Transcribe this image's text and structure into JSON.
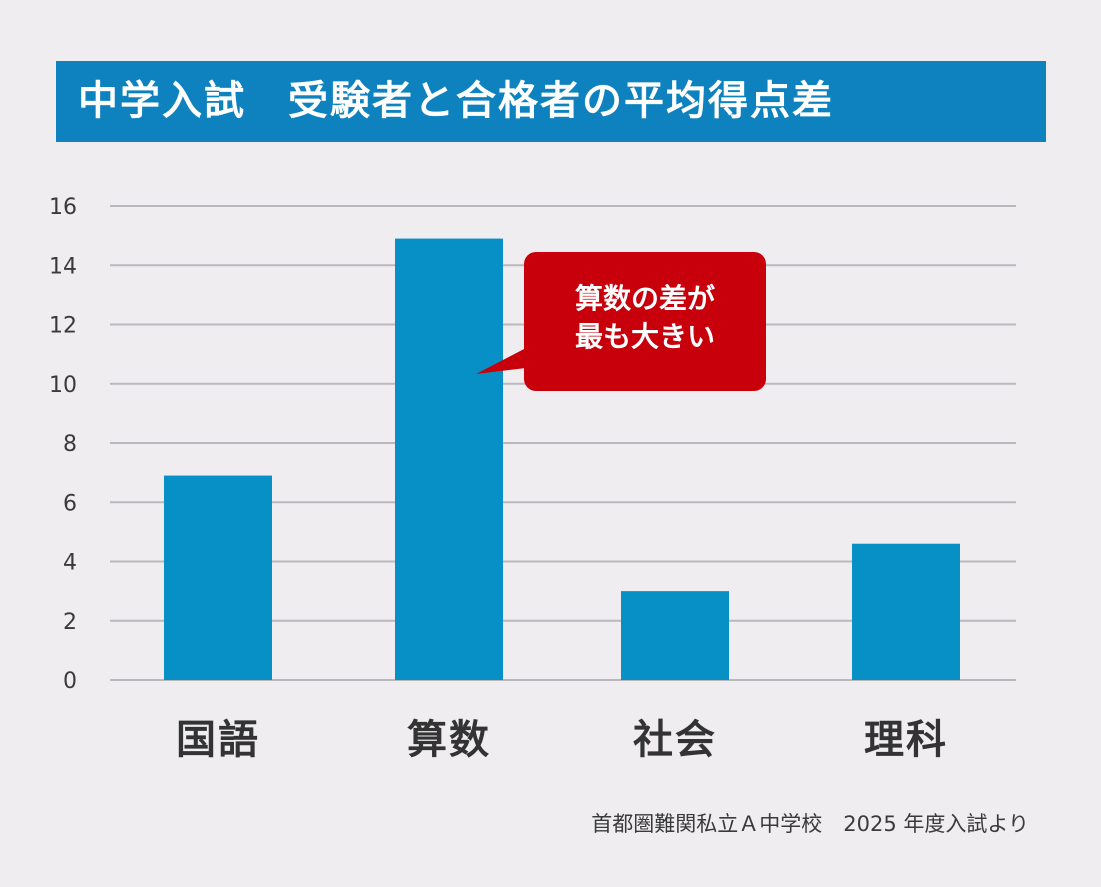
{
  "title": "中学入試　受験者と合格者の平均得点差",
  "callout": {
    "line1": "算数の差が",
    "line2": "最も大きい"
  },
  "source": "首都圏難関私立Ａ中学校　2025 年度入試より",
  "colors": {
    "background": "#efedf0",
    "title_bg": "#0d82bf",
    "bar": "#0790c6",
    "callout": "#c7000b",
    "grid": "#b9b9bd",
    "tick_text": "#3a3a3a",
    "category_text": "#333333"
  },
  "chart_data": {
    "type": "bar",
    "categories": [
      "国語",
      "算数",
      "社会",
      "理科"
    ],
    "values": [
      6.9,
      14.9,
      3.0,
      4.6
    ],
    "ylim": [
      0,
      16
    ],
    "yticks": [
      0,
      2,
      4,
      6,
      8,
      10,
      12,
      14,
      16
    ],
    "grid": true,
    "title": "中学入試　受験者と合格者の平均得点差",
    "xlabel": "",
    "ylabel": ""
  }
}
